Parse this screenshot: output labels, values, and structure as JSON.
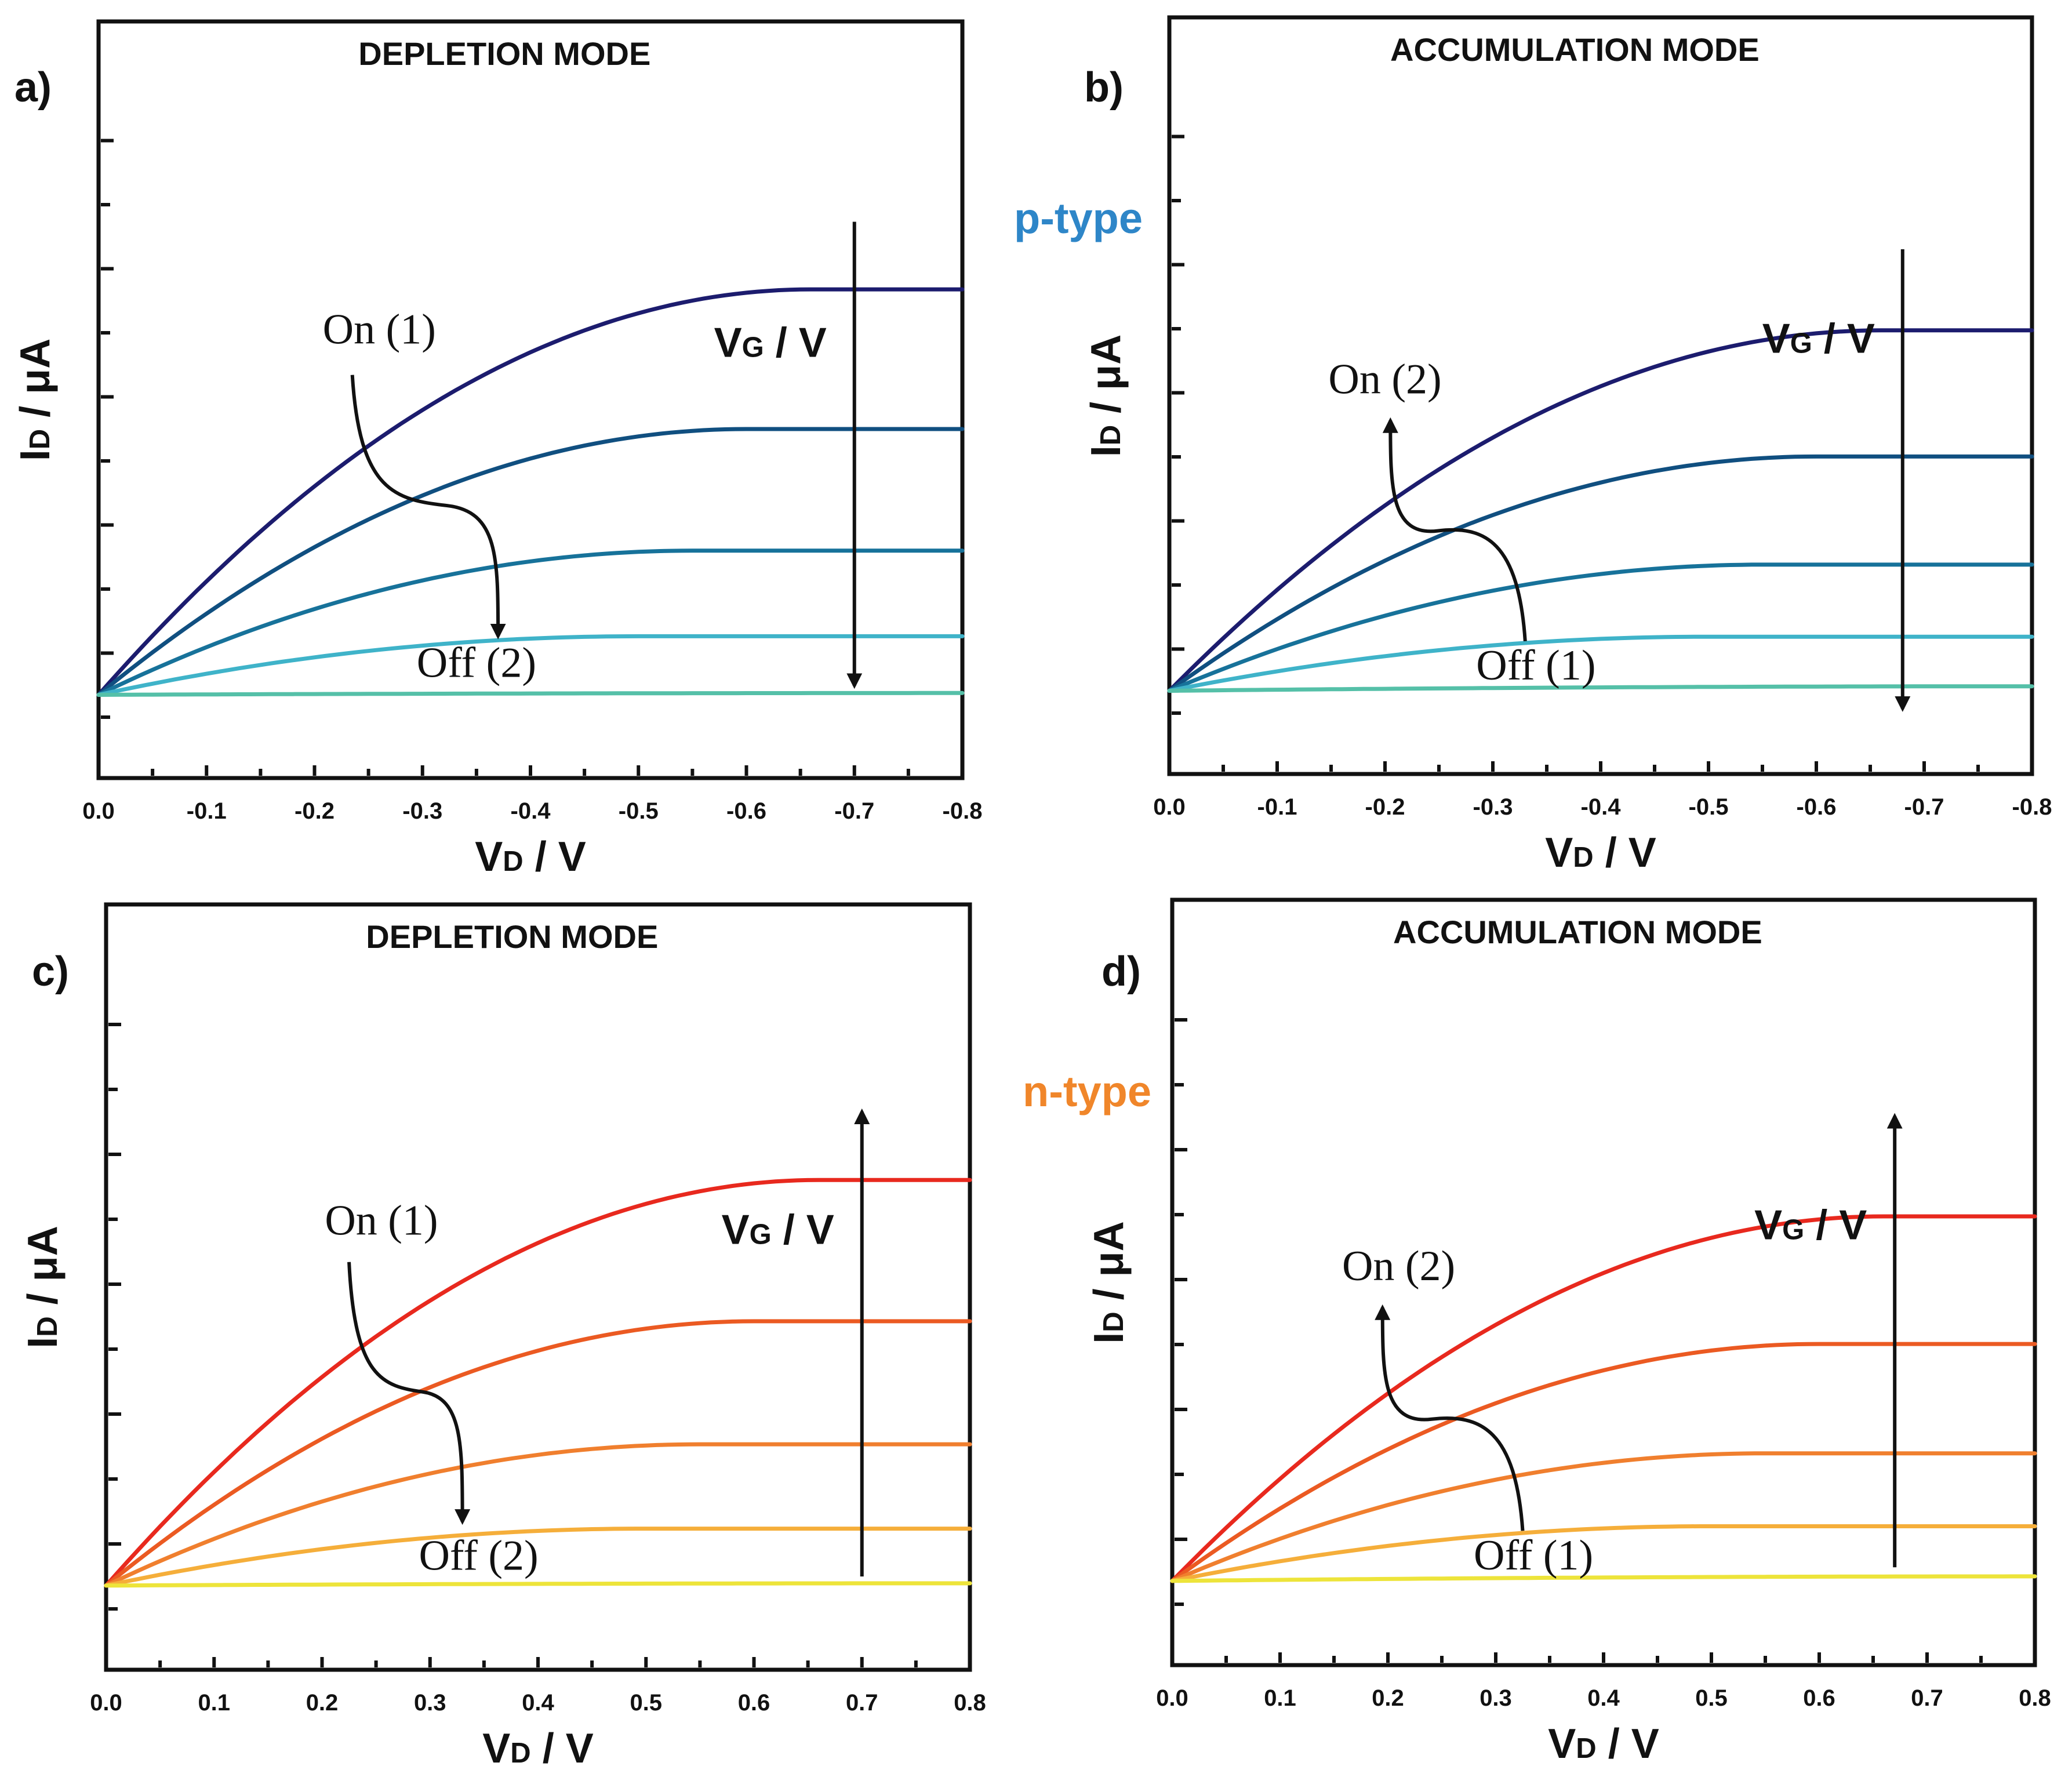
{
  "side_labels": [
    {
      "text": "p-type",
      "color": "#2E86C8"
    },
    {
      "text": "n-type",
      "color": "#F0862A"
    }
  ],
  "chart_data": [
    {
      "panel_label": "a)",
      "type": "line",
      "title": "DEPLETION MODE",
      "xlabel_main": "V",
      "xlabel_sub": "D",
      "xlabel_unit": " / V",
      "ylabel_main": "I",
      "ylabel_sub": "D",
      "ylabel_unit": " / μA",
      "xlim": [
        0,
        -0.8
      ],
      "ylim": [
        0,
        11
      ],
      "xticks": [
        "0.0",
        "-0.1",
        "-0.2",
        "-0.3",
        "-0.4",
        "-0.5",
        "-0.6",
        "-0.7",
        "-0.8"
      ],
      "gate_label_main": "V",
      "gate_label_sub": "G",
      "gate_label_unit": " / V",
      "gate_arrow": {
        "x": -0.7,
        "from": 10.5,
        "to": 0.2
      },
      "series": [
        {
          "color": "#1C1C6E",
          "sat": 9.0,
          "vsat": 0.66
        },
        {
          "color": "#104F80",
          "sat": 5.9,
          "vsat": 0.6
        },
        {
          "color": "#17729A",
          "sat": 3.2,
          "vsat": 0.55
        },
        {
          "color": "#3FB3C9",
          "sat": 1.3,
          "vsat": 0.5
        },
        {
          "color": "#55C0A8",
          "sat": 0.04,
          "vsat": 0.8
        }
      ],
      "annotations": [
        {
          "kind": "on",
          "text": "On (1)",
          "tx": -0.26,
          "ty": 7.8
        },
        {
          "kind": "off",
          "text": "Off (2)",
          "tx": -0.35,
          "ty": 0.4
        }
      ],
      "switch_arrow": {
        "from_x": -0.235,
        "from_y": 7.1,
        "to_x": -0.37,
        "to_y": 1.3,
        "head": "end"
      }
    },
    {
      "panel_label": "b)",
      "type": "line",
      "title": "ACCUMULATION MODE",
      "xlabel_main": "V",
      "xlabel_sub": "D",
      "xlabel_unit": " / V",
      "ylabel_main": "I",
      "ylabel_sub": "D",
      "ylabel_unit": " / μA",
      "xlim": [
        0,
        -0.8
      ],
      "ylim": [
        0,
        11
      ],
      "xticks": [
        "0.0",
        "-0.1",
        "-0.2",
        "-0.3",
        "-0.4",
        "-0.5",
        "-0.6",
        "-0.7",
        "-0.8"
      ],
      "gate_label_main": "V",
      "gate_label_sub": "G",
      "gate_label_unit": " / V",
      "gate_arrow": {
        "x": -0.68,
        "from": 9.8,
        "to": -0.4
      },
      "series": [
        {
          "color": "#1C1C6E",
          "sat": 8.0,
          "vsat": 0.66
        },
        {
          "color": "#104F80",
          "sat": 5.2,
          "vsat": 0.6
        },
        {
          "color": "#17729A",
          "sat": 2.8,
          "vsat": 0.55
        },
        {
          "color": "#3FB3C9",
          "sat": 1.2,
          "vsat": 0.5
        },
        {
          "color": "#55C0A8",
          "sat": 0.1,
          "vsat": 0.8
        }
      ],
      "annotations": [
        {
          "kind": "on",
          "text": "On (2)",
          "tx": -0.2,
          "ty": 6.6
        },
        {
          "kind": "off",
          "text": "Off (1)",
          "tx": -0.34,
          "ty": 0.25
        }
      ],
      "switch_arrow": {
        "from_x": -0.33,
        "from_y": 1.1,
        "to_x": -0.205,
        "to_y": 6.0,
        "head": "end"
      }
    },
    {
      "panel_label": "c)",
      "type": "line",
      "title": "DEPLETION MODE",
      "xlabel_main": "V",
      "xlabel_sub": "D",
      "xlabel_unit": " / V",
      "ylabel_main": "I",
      "ylabel_sub": "D",
      "ylabel_unit": " / μA",
      "xlim": [
        0,
        0.8
      ],
      "ylim": [
        0,
        11
      ],
      "xticks": [
        "0.0",
        "0.1",
        "0.2",
        "0.3",
        "0.4",
        "0.5",
        "0.6",
        "0.7",
        "0.8"
      ],
      "gate_label_main": "V",
      "gate_label_sub": "G",
      "gate_label_unit": " / V",
      "gate_arrow": {
        "x": 0.7,
        "from": 0.2,
        "to": 10.4
      },
      "series": [
        {
          "color": "#E8291E",
          "sat": 8.9,
          "vsat": 0.66
        },
        {
          "color": "#EB5A22",
          "sat": 5.8,
          "vsat": 0.6
        },
        {
          "color": "#F07F2E",
          "sat": 3.1,
          "vsat": 0.55
        },
        {
          "color": "#F5AE3A",
          "sat": 1.25,
          "vsat": 0.5
        },
        {
          "color": "#EDE43A",
          "sat": 0.05,
          "vsat": 0.8
        }
      ],
      "annotations": [
        {
          "kind": "on",
          "text": "On (1)",
          "tx": 0.255,
          "ty": 7.7
        },
        {
          "kind": "off",
          "text": "Off (2)",
          "tx": 0.345,
          "ty": 0.35
        }
      ],
      "switch_arrow": {
        "from_x": 0.225,
        "from_y": 7.1,
        "to_x": 0.33,
        "to_y": 1.4,
        "head": "end"
      }
    },
    {
      "panel_label": "d)",
      "type": "line",
      "title": "ACCUMULATION MODE",
      "xlabel_main": "V",
      "xlabel_sub": "D",
      "xlabel_unit": " / V",
      "ylabel_main": "I",
      "ylabel_sub": "D",
      "ylabel_unit": " / μA",
      "xlim": [
        0,
        0.8
      ],
      "ylim": [
        0,
        11
      ],
      "xticks": [
        "0.0",
        "0.1",
        "0.2",
        "0.3",
        "0.4",
        "0.5",
        "0.6",
        "0.7",
        "0.8"
      ],
      "gate_label_main": "V",
      "gate_label_sub": "G",
      "gate_label_unit": " / V",
      "gate_arrow": {
        "x": 0.67,
        "from": 0.3,
        "to": 10.2
      },
      "series": [
        {
          "color": "#E8291E",
          "sat": 8.0,
          "vsat": 0.66
        },
        {
          "color": "#EB5A22",
          "sat": 5.2,
          "vsat": 0.6
        },
        {
          "color": "#F07F2E",
          "sat": 2.8,
          "vsat": 0.55
        },
        {
          "color": "#F5AE3A",
          "sat": 1.2,
          "vsat": 0.5
        },
        {
          "color": "#EDE43A",
          "sat": 0.1,
          "vsat": 0.8
        }
      ],
      "annotations": [
        {
          "kind": "on",
          "text": "On (2)",
          "tx": 0.21,
          "ty": 6.6
        },
        {
          "kind": "off",
          "text": "Off (1)",
          "tx": 0.335,
          "ty": 0.25
        }
      ],
      "switch_arrow": {
        "from_x": 0.325,
        "from_y": 1.1,
        "to_x": 0.195,
        "to_y": 6.0,
        "head": "end"
      }
    }
  ]
}
